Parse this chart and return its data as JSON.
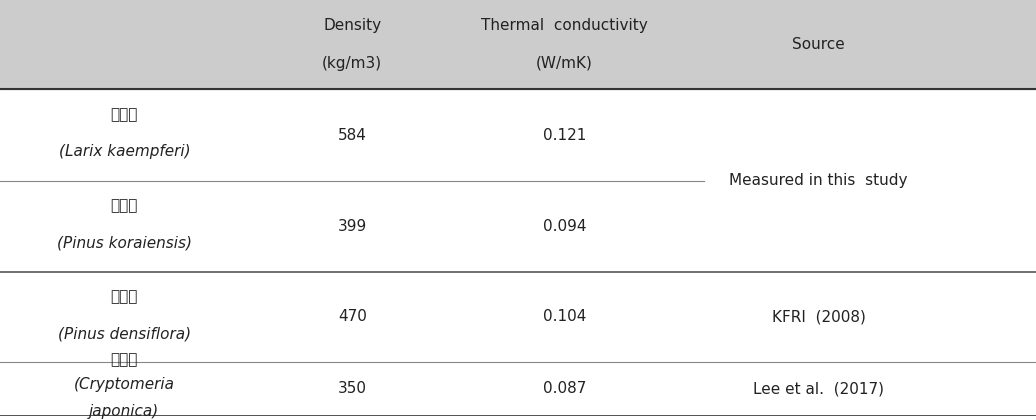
{
  "header_col1_line1": "Density",
  "header_col1_line2": "(kg/m3)",
  "header_col2_line1": "Thermal  conductivity",
  "header_col2_line2": "(W/mK)",
  "header_col3": "Source",
  "header_bg": "#cccccc",
  "rows": [
    {
      "name_kr": "낙엽송",
      "name_sci": "(Larix kaempferi)",
      "density": "584",
      "thermal": "0.121",
      "source": ""
    },
    {
      "name_kr": "잋나무",
      "name_sci": "(Pinus koraiensis)",
      "density": "399",
      "thermal": "0.094",
      "source": ""
    },
    {
      "name_kr": "소나무",
      "name_sci": "(Pinus densiflora)",
      "density": "470",
      "thermal": "0.104",
      "source": "KFRI  (2008)"
    },
    {
      "name_kr": "삼나무",
      "name_sci_line1": "(Cryptomeria",
      "name_sci_line2": "japonica)",
      "density": "350",
      "thermal": "0.087",
      "source": "Lee et al.  (2017)"
    }
  ],
  "measured_text": "Measured in this  study",
  "bg_color": "#ffffff",
  "text_color": "#222222",
  "font_size": 11,
  "header_font_size": 11
}
